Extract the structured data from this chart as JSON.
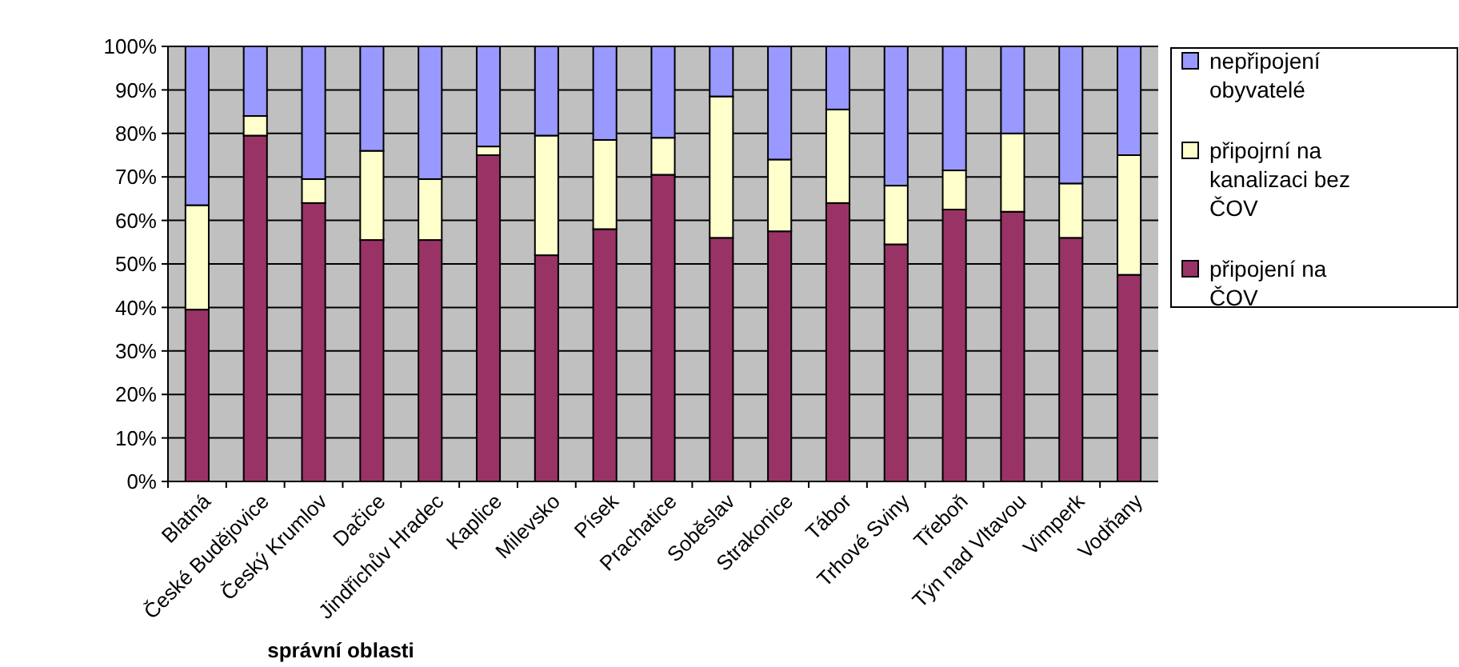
{
  "chart_data": {
    "type": "bar",
    "stacked": true,
    "xlabel": "správní oblasti",
    "categories": [
      "Blatná",
      "České Budějovice",
      "Český Krumlov",
      "Dačice",
      "Jindřichův Hradec",
      "Kaplice",
      "Milevsko",
      "Písek",
      "Prachatice",
      "Soběslav",
      "Strakonice",
      "Tábor",
      "Trhové Sviny",
      "Třeboň",
      "Týn nad Vltavou",
      "Vimperk",
      "Vodňany"
    ],
    "series": [
      {
        "name": "připojení na ČOV",
        "color": "#993366",
        "values": [
          39.5,
          79.5,
          64,
          55.5,
          55.5,
          75,
          52,
          58,
          70.5,
          56,
          57.5,
          64,
          54.5,
          62.5,
          62,
          56,
          47.5
        ]
      },
      {
        "name": "připojrní na kanalizaci bez ČOV",
        "color": "#ffffcc",
        "values": [
          24,
          4.5,
          5.5,
          20.5,
          14,
          2,
          27.5,
          20.5,
          8.5,
          32.5,
          16.5,
          21.5,
          13.5,
          9,
          18,
          12.5,
          27.5
        ]
      },
      {
        "name": "nepřipojení obyvatelé",
        "color": "#9999ff",
        "values": [
          36.5,
          16,
          30.5,
          24,
          30.5,
          23,
          20.5,
          21.5,
          21,
          11.5,
          26,
          14.5,
          32,
          28.5,
          20,
          31.5,
          25
        ]
      }
    ],
    "ylim": [
      0,
      100
    ],
    "yticks": [
      {
        "value": 0,
        "label": "0%"
      },
      {
        "value": 10,
        "label": "10%"
      },
      {
        "value": 20,
        "label": "20%"
      },
      {
        "value": 30,
        "label": "30%"
      },
      {
        "value": 40,
        "label": "40%"
      },
      {
        "value": 50,
        "label": "50%"
      },
      {
        "value": 60,
        "label": "60%"
      },
      {
        "value": 70,
        "label": "70%"
      },
      {
        "value": 80,
        "label": "80%"
      },
      {
        "value": 90,
        "label": "90%"
      },
      {
        "value": 100,
        "label": "100%"
      }
    ],
    "grid": "y",
    "legend": "right"
  }
}
